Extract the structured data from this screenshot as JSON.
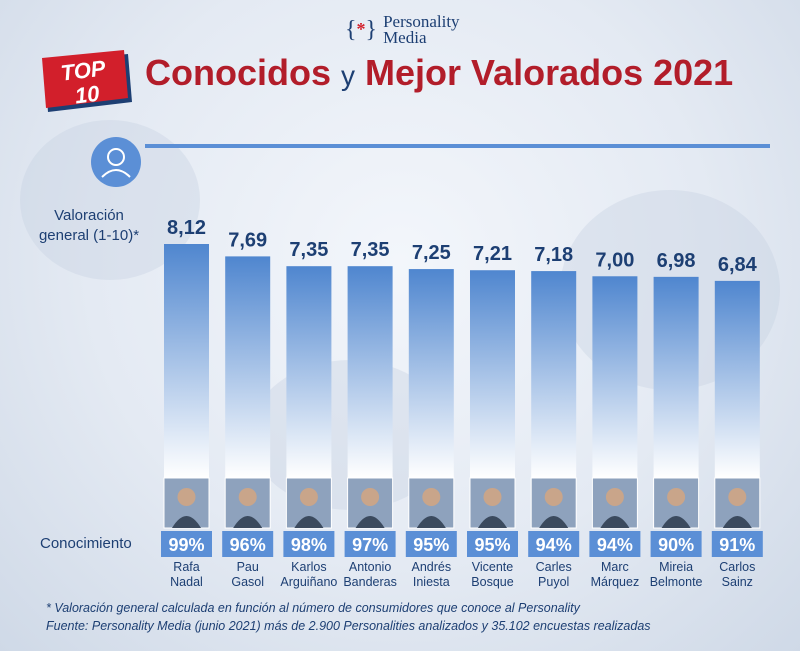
{
  "brand": {
    "line1": "Personality",
    "line2": "Media"
  },
  "badge": {
    "top": "TOP",
    "number": "10"
  },
  "title": {
    "part1": "Conocidos",
    "connector": "y",
    "part2": "Mejor Valorados 2021"
  },
  "colors": {
    "accent": "#5b8fd6",
    "title_red": "#b21d2a",
    "text_navy": "#1d3f73"
  },
  "chart_data": {
    "type": "bar",
    "ylabel_lines": [
      "Valoración",
      "general (1-10)*"
    ],
    "knowledge_label": "Conocimiento",
    "categories": [
      [
        "Rafa",
        "Nadal"
      ],
      [
        "Pau",
        "Gasol"
      ],
      [
        "Karlos",
        "Arguiñano"
      ],
      [
        "Antonio",
        "Banderas"
      ],
      [
        "Andrés",
        "Iniesta"
      ],
      [
        "Vicente",
        "Bosque"
      ],
      [
        "Carles",
        "Puyol"
      ],
      [
        "Marc",
        "Márquez"
      ],
      [
        "Mireia",
        "Belmonte"
      ],
      [
        "Carlos",
        "Sainz"
      ]
    ],
    "values": [
      8.12,
      7.69,
      7.35,
      7.35,
      7.25,
      7.21,
      7.18,
      7.0,
      6.98,
      6.84
    ],
    "value_labels": [
      "8,12",
      "7,69",
      "7,35",
      "7,35",
      "7,25",
      "7,21",
      "7,18",
      "7,00",
      "6,98",
      "6,84"
    ],
    "knowledge": [
      "99%",
      "96%",
      "98%",
      "97%",
      "95%",
      "95%",
      "94%",
      "94%",
      "90%",
      "91%"
    ]
  },
  "footnotes": [
    "* Valoración general calculada en función al número de consumidores que conoce al Personality",
    "Fuente: Personality Media (junio 2021) más de 2.900 Personalities analizados y 35.102 encuestas realizadas"
  ]
}
